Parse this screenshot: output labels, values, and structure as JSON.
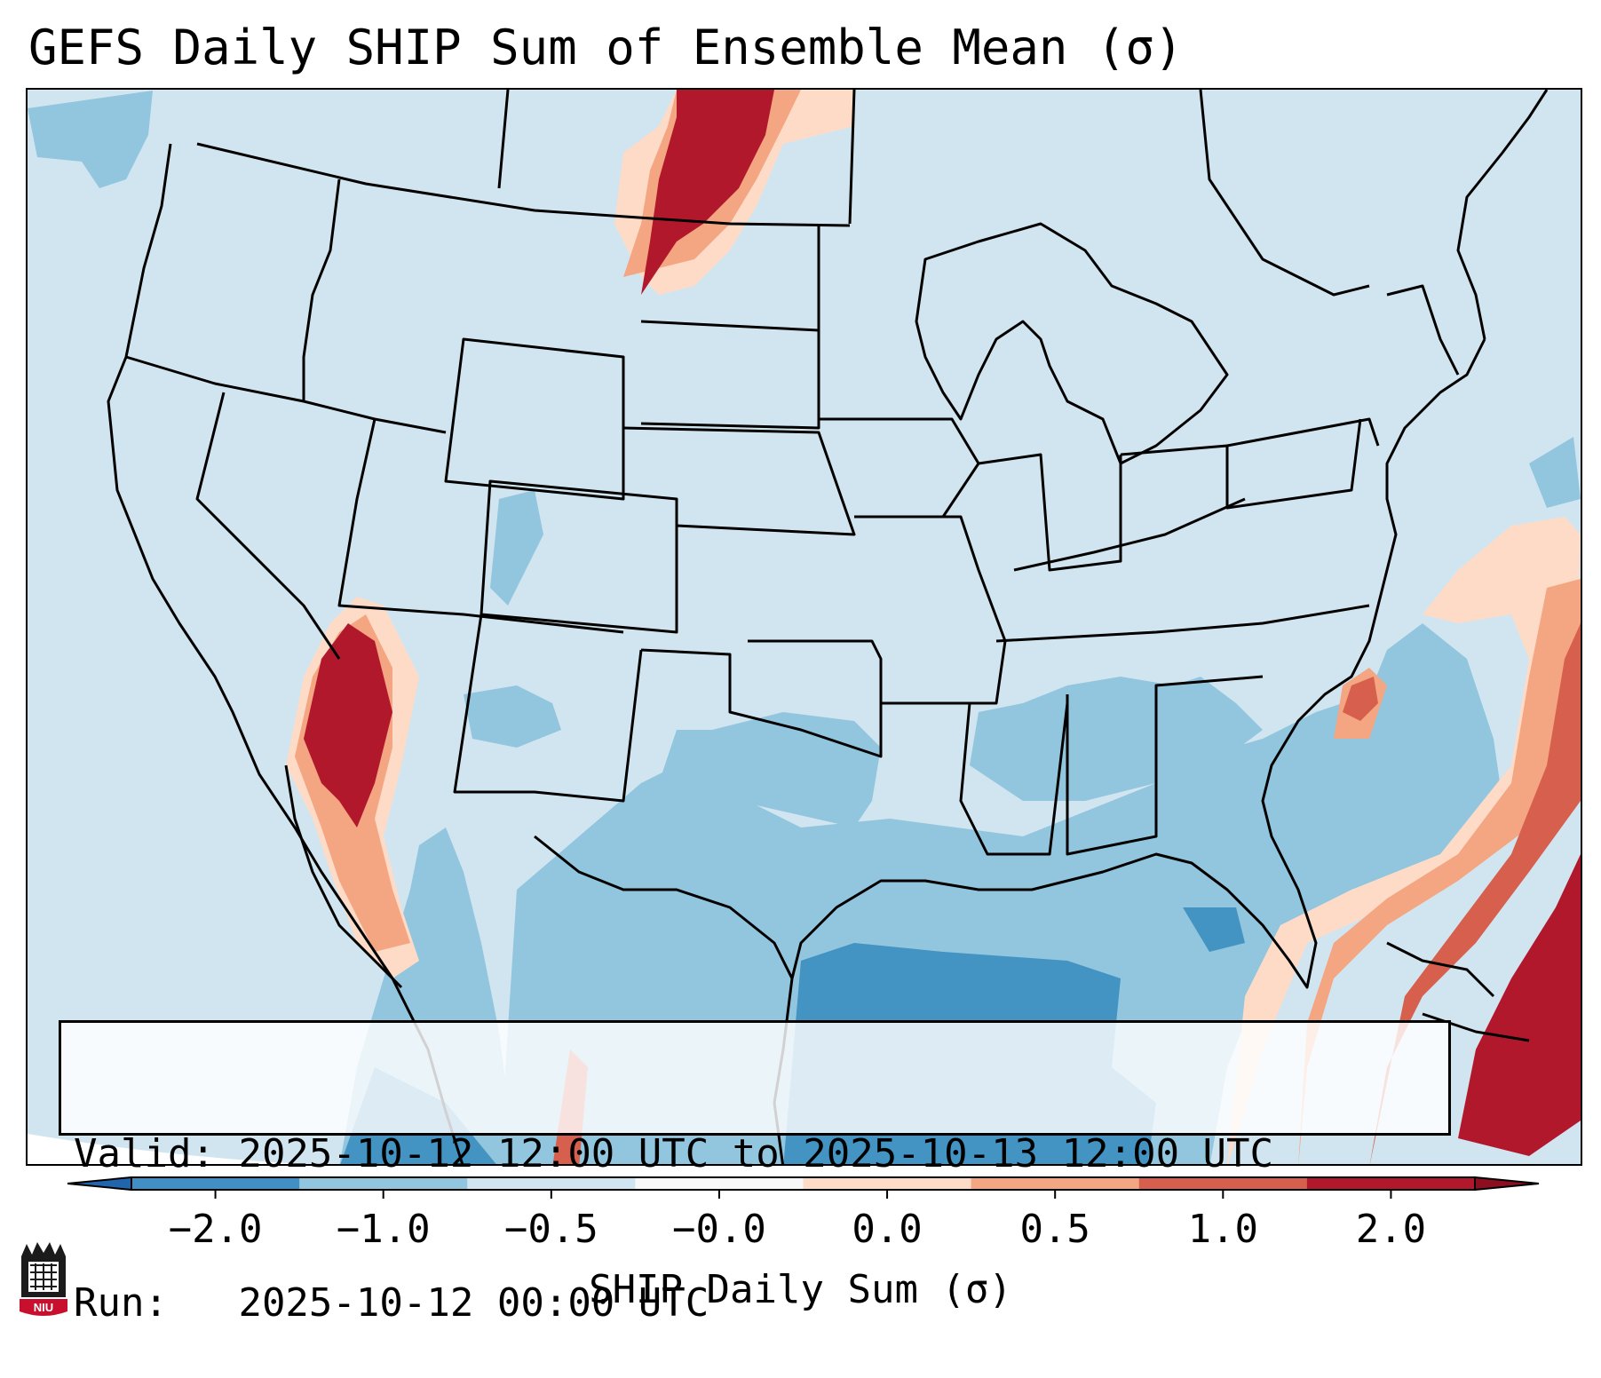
{
  "title": "GEFS Daily SHIP Sum of Ensemble Mean (σ)",
  "info": {
    "valid_label": "Valid:",
    "valid_value": "2025-10-12 12:00 UTC to 2025-10-13 12:00 UTC",
    "run_label": "Run:",
    "run_value": "2025-10-12 00:00 UTC"
  },
  "colorbar": {
    "label": "SHIP Daily Sum (σ)",
    "ticks": [
      "−2.0",
      "−1.0",
      "−0.5",
      "−0.0",
      "0.0",
      "0.5",
      "1.0",
      "2.0"
    ],
    "colors": [
      "#4090c5",
      "#92c5de",
      "#d1e5f0",
      "#f7f7f7",
      "#fddbc7",
      "#f4a582",
      "#d6604d",
      "#b2182b"
    ],
    "under_color": "#2166ac",
    "over_color": "#8b0f20"
  },
  "logo": {
    "text": "NIU",
    "color": "#c8102e"
  }
}
